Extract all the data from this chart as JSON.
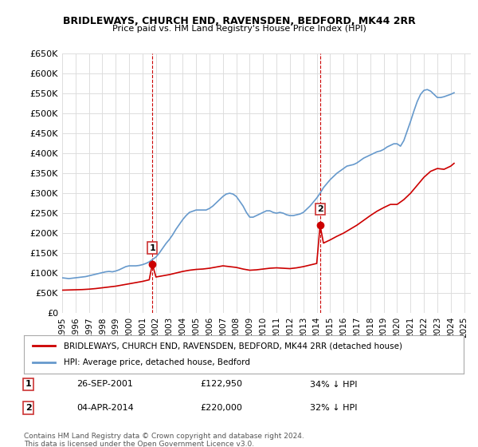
{
  "title": "BRIDLEWAYS, CHURCH END, RAVENSDEN, BEDFORD, MK44 2RR",
  "subtitle": "Price paid vs. HM Land Registry's House Price Index (HPI)",
  "ylim": [
    0,
    650000
  ],
  "yticks": [
    0,
    50000,
    100000,
    150000,
    200000,
    250000,
    300000,
    350000,
    400000,
    450000,
    500000,
    550000,
    600000,
    650000
  ],
  "ytick_labels": [
    "£0",
    "£50K",
    "£100K",
    "£150K",
    "£200K",
    "£250K",
    "£300K",
    "£350K",
    "£400K",
    "£450K",
    "£500K",
    "£550K",
    "£600K",
    "£650K"
  ],
  "xlim_start": 1995.0,
  "xlim_end": 2025.5,
  "transactions": [
    {
      "label": "1",
      "date_str": "26-SEP-2001",
      "year": 2001.73,
      "price": 122950,
      "pct": "34%",
      "dir": "↓"
    },
    {
      "label": "2",
      "date_str": "04-APR-2014",
      "year": 2014.25,
      "price": 220000,
      "pct": "32%",
      "dir": "↓"
    }
  ],
  "line_red_color": "#cc0000",
  "line_blue_color": "#6699cc",
  "marker_red_color": "#cc0000",
  "vline_color": "#cc0000",
  "grid_color": "#dddddd",
  "background_color": "#ffffff",
  "legend_label_red": "BRIDLEWAYS, CHURCH END, RAVENSDEN, BEDFORD, MK44 2RR (detached house)",
  "legend_label_blue": "HPI: Average price, detached house, Bedford",
  "footer": "Contains HM Land Registry data © Crown copyright and database right 2024.\nThis data is licensed under the Open Government Licence v3.0.",
  "hpi_data_x": [
    1995.0,
    1995.25,
    1995.5,
    1995.75,
    1996.0,
    1996.25,
    1996.5,
    1996.75,
    1997.0,
    1997.25,
    1997.5,
    1997.75,
    1998.0,
    1998.25,
    1998.5,
    1998.75,
    1999.0,
    1999.25,
    1999.5,
    1999.75,
    2000.0,
    2000.25,
    2000.5,
    2000.75,
    2001.0,
    2001.25,
    2001.5,
    2001.75,
    2002.0,
    2002.25,
    2002.5,
    2002.75,
    2003.0,
    2003.25,
    2003.5,
    2003.75,
    2004.0,
    2004.25,
    2004.5,
    2004.75,
    2005.0,
    2005.25,
    2005.5,
    2005.75,
    2006.0,
    2006.25,
    2006.5,
    2006.75,
    2007.0,
    2007.25,
    2007.5,
    2007.75,
    2008.0,
    2008.25,
    2008.5,
    2008.75,
    2009.0,
    2009.25,
    2009.5,
    2009.75,
    2010.0,
    2010.25,
    2010.5,
    2010.75,
    2011.0,
    2011.25,
    2011.5,
    2011.75,
    2012.0,
    2012.25,
    2012.5,
    2012.75,
    2013.0,
    2013.25,
    2013.5,
    2013.75,
    2014.0,
    2014.25,
    2014.5,
    2014.75,
    2015.0,
    2015.25,
    2015.5,
    2015.75,
    2016.0,
    2016.25,
    2016.5,
    2016.75,
    2017.0,
    2017.25,
    2017.5,
    2017.75,
    2018.0,
    2018.25,
    2018.5,
    2018.75,
    2019.0,
    2019.25,
    2019.5,
    2019.75,
    2020.0,
    2020.25,
    2020.5,
    2020.75,
    2021.0,
    2021.25,
    2021.5,
    2021.75,
    2022.0,
    2022.25,
    2022.5,
    2022.75,
    2023.0,
    2023.25,
    2023.5,
    2023.75,
    2024.0,
    2024.25
  ],
  "hpi_data_y": [
    88000,
    87000,
    86000,
    87000,
    88000,
    89000,
    90000,
    91000,
    93000,
    95000,
    97000,
    99000,
    101000,
    103000,
    104000,
    103000,
    105000,
    108000,
    112000,
    116000,
    118000,
    118000,
    118000,
    119000,
    121000,
    124000,
    128000,
    134000,
    140000,
    150000,
    162000,
    174000,
    184000,
    196000,
    210000,
    222000,
    234000,
    244000,
    252000,
    255000,
    258000,
    258000,
    258000,
    258000,
    262000,
    268000,
    276000,
    284000,
    292000,
    298000,
    300000,
    298000,
    292000,
    280000,
    268000,
    252000,
    240000,
    240000,
    244000,
    248000,
    252000,
    256000,
    256000,
    252000,
    250000,
    252000,
    250000,
    246000,
    244000,
    244000,
    246000,
    248000,
    252000,
    260000,
    268000,
    278000,
    288000,
    300000,
    314000,
    324000,
    334000,
    342000,
    350000,
    356000,
    362000,
    368000,
    370000,
    372000,
    376000,
    382000,
    388000,
    392000,
    396000,
    400000,
    404000,
    406000,
    410000,
    416000,
    420000,
    424000,
    424000,
    418000,
    432000,
    456000,
    480000,
    506000,
    530000,
    548000,
    558000,
    560000,
    556000,
    548000,
    540000,
    540000,
    542000,
    545000,
    548000,
    552000
  ],
  "property_data_x": [
    1995.0,
    1995.5,
    1996.0,
    1996.5,
    1997.0,
    1997.5,
    1998.0,
    1998.5,
    1999.0,
    1999.5,
    2000.0,
    2000.5,
    2001.0,
    2001.5,
    2001.73,
    2002.0,
    2002.5,
    2003.0,
    2003.5,
    2004.0,
    2004.5,
    2005.0,
    2005.5,
    2006.0,
    2006.5,
    2007.0,
    2007.5,
    2008.0,
    2008.5,
    2009.0,
    2009.5,
    2010.0,
    2010.5,
    2011.0,
    2011.5,
    2012.0,
    2012.5,
    2013.0,
    2013.5,
    2014.0,
    2014.25,
    2014.5,
    2015.0,
    2015.5,
    2016.0,
    2016.5,
    2017.0,
    2017.5,
    2018.0,
    2018.5,
    2019.0,
    2019.5,
    2020.0,
    2020.5,
    2021.0,
    2021.5,
    2022.0,
    2022.5,
    2023.0,
    2023.5,
    2024.0,
    2024.25
  ],
  "property_data_y": [
    57000,
    57500,
    58000,
    58500,
    59500,
    61000,
    63000,
    65000,
    67000,
    70000,
    73000,
    76000,
    79000,
    83000,
    122950,
    90000,
    93000,
    96000,
    100000,
    104000,
    107000,
    109000,
    110000,
    112000,
    115000,
    118000,
    116000,
    114000,
    110000,
    107000,
    108000,
    110000,
    112000,
    113000,
    112000,
    111000,
    113000,
    116000,
    120000,
    124000,
    220000,
    175000,
    183000,
    192000,
    200000,
    210000,
    220000,
    232000,
    244000,
    255000,
    264000,
    272000,
    272000,
    284000,
    300000,
    320000,
    340000,
    355000,
    362000,
    360000,
    368000,
    375000
  ]
}
